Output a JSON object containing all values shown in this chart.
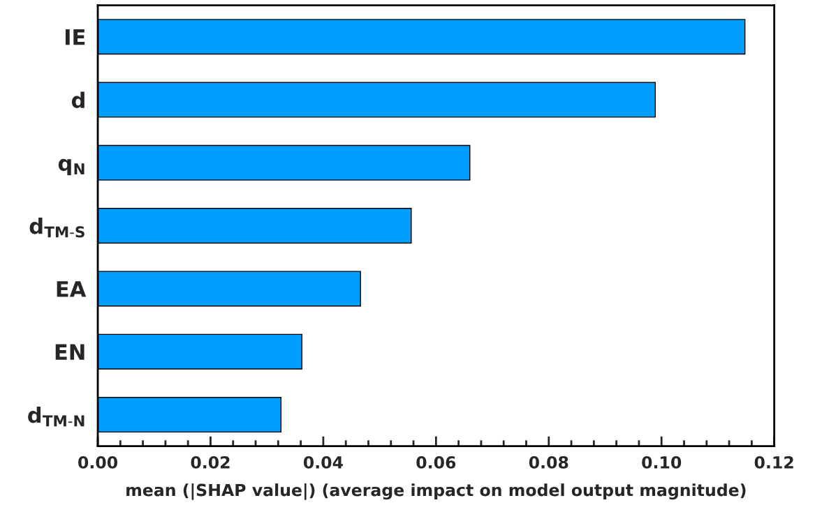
{
  "chart_data": {
    "type": "bar",
    "orientation": "horizontal",
    "xlabel": "mean (|SHAP value|) (average impact on model output magnitude)",
    "categories": [
      "IE",
      "d",
      "q$_{N}$",
      "d$_{TM-S}$",
      "EA",
      "EN",
      "d$_{TM-N}$"
    ],
    "values": [
      0.1148,
      0.0989,
      0.066,
      0.0556,
      0.0466,
      0.0362,
      0.0325
    ],
    "color": "#009fff",
    "xlim": [
      0,
      0.12
    ],
    "xticks": [
      {
        "value": 0,
        "label": "0.00"
      },
      {
        "value": 0.02,
        "label": "0.02"
      },
      {
        "value": 0.04,
        "label": "0.04"
      },
      {
        "value": 0.06,
        "label": "0.06"
      },
      {
        "value": 0.08,
        "label": "0.08"
      },
      {
        "value": 0.1,
        "label": "0.10"
      },
      {
        "value": 0.12,
        "label": "0.12"
      }
    ],
    "grid": false,
    "legend": false
  }
}
